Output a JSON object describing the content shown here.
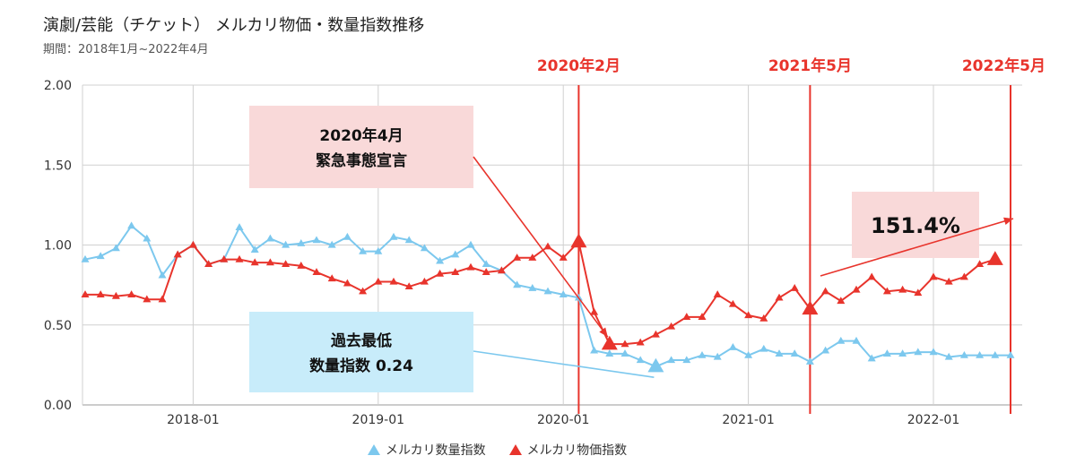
{
  "title": "演劇/芸能（チケット） メルカリ物価・数量指数推移",
  "subtitle": "期間：2018年1月~2022年4月",
  "colors": {
    "quantity": "#7cc8ee",
    "price": "#e8342c",
    "callout_pink": "#f9d9d9",
    "callout_blue": "#c8ecfa",
    "grid": "#d0d0d0"
  },
  "chart_data": {
    "type": "line",
    "title": "演劇/芸能（チケット） メルカリ物価・数量指数推移",
    "x_labels": [
      "2018-01",
      "2019-01",
      "2020-01",
      "2021-01",
      "2022-01"
    ],
    "x_label_index": [
      7,
      19,
      31,
      43,
      55
    ],
    "x_grid_index": [
      7,
      19,
      31,
      43,
      55
    ],
    "ylim": [
      0,
      2
    ],
    "y_ticks": [
      "0.00",
      "0.50",
      "1.00",
      "1.50",
      "2.00"
    ],
    "series": [
      {
        "name": "メルカリ数量指数",
        "values": [
          0.91,
          0.93,
          0.98,
          1.12,
          1.04,
          0.81,
          0.94,
          1.0,
          0.88,
          0.91,
          1.11,
          0.97,
          1.04,
          1.0,
          1.01,
          1.03,
          1.0,
          1.05,
          0.96,
          0.96,
          1.05,
          1.03,
          0.98,
          0.9,
          0.94,
          1.0,
          0.88,
          0.84,
          0.75,
          0.73,
          0.71,
          0.69,
          0.67,
          0.34,
          0.32,
          0.32,
          0.28,
          0.24,
          0.28,
          0.28,
          0.31,
          0.3,
          0.36,
          0.31,
          0.35,
          0.32,
          0.32,
          0.27,
          0.34,
          0.4,
          0.4,
          0.29,
          0.32,
          0.32,
          0.33,
          0.33,
          0.3,
          0.31,
          0.31,
          0.31,
          0.31
        ]
      },
      {
        "name": "メルカリ物価指数",
        "values": [
          0.69,
          0.69,
          0.68,
          0.69,
          0.66,
          0.66,
          0.94,
          1.0,
          0.88,
          0.91,
          0.91,
          0.89,
          0.89,
          0.88,
          0.87,
          0.83,
          0.79,
          0.76,
          0.71,
          0.77,
          0.77,
          0.74,
          0.77,
          0.82,
          0.83,
          0.86,
          0.83,
          0.84,
          0.92,
          0.92,
          0.99,
          0.92,
          1.02,
          0.58,
          0.38,
          0.38,
          0.39,
          0.44,
          0.49,
          0.55,
          0.55,
          0.69,
          0.63,
          0.56,
          0.54,
          0.67,
          0.73,
          0.6,
          0.71,
          0.65,
          0.72,
          0.8,
          0.71,
          0.72,
          0.7,
          0.8,
          0.77,
          0.8,
          0.88,
          0.91
        ]
      }
    ],
    "highlight_markers": [
      {
        "series": 1,
        "index": 32
      },
      {
        "series": 1,
        "index": 34
      },
      {
        "series": 0,
        "index": 37
      },
      {
        "series": 1,
        "index": 47
      },
      {
        "series": 1,
        "index": 59
      }
    ],
    "event_lines": [
      {
        "label": "2020年2月",
        "index": 32
      },
      {
        "label": "2021年5月",
        "index": 47
      },
      {
        "label": "2022年5月",
        "index": 60
      }
    ],
    "annotations": {
      "emergency_line1": "2020年4月",
      "emergency_line2": "緊急事態宣言",
      "lowest_line1": "過去最低",
      "lowest_line2": "数量指数 0.24",
      "growth": "151.4%"
    },
    "legend": [
      "メルカリ数量指数",
      "メルカリ物価指数"
    ]
  }
}
